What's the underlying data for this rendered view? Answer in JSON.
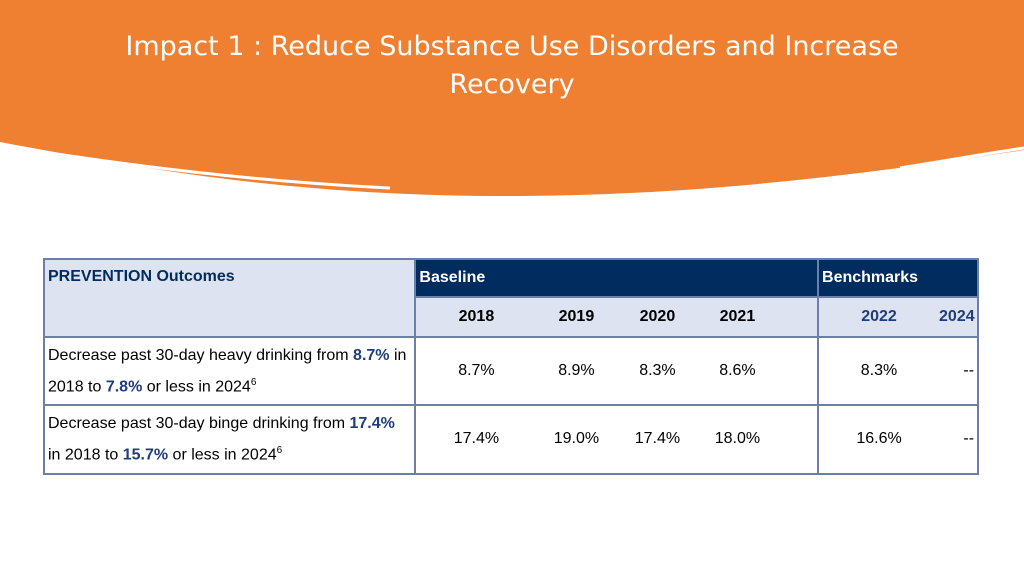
{
  "slide": {
    "title_line1": "Impact 1 : Reduce Substance Use Disorders and Increase",
    "title_line2": "Recovery",
    "accent_color": "#ef7f31",
    "navy_color": "#002c5f"
  },
  "table": {
    "header_label": "PREVENTION Outcomes",
    "baseline_label": "Baseline",
    "benchmarks_label": "Benchmarks",
    "baseline_years": [
      "2018",
      "2019",
      "2020",
      "2021"
    ],
    "benchmark_years": [
      "2022",
      "2024"
    ],
    "rows": [
      {
        "pre": "Decrease past 30-day heavy drinking from ",
        "val1": "8.7%",
        "mid": " in 2018 to ",
        "val2": "7.8%",
        "post": " or less in 2024",
        "sup": "6",
        "baseline": [
          "8.7%",
          "8.9%",
          "8.3%",
          "8.6%"
        ],
        "benchmarks": [
          "8.3%",
          "--"
        ]
      },
      {
        "pre": "Decrease past 30-day binge drinking from ",
        "val1": "17.4%",
        "mid": " in 2018 to ",
        "val2": "15.7%",
        "post": " or less in 2024",
        "sup": "6",
        "baseline": [
          "17.4%",
          "19.0%",
          "17.4%",
          "18.0%"
        ],
        "benchmarks": [
          "16.6%",
          "--"
        ]
      }
    ]
  }
}
